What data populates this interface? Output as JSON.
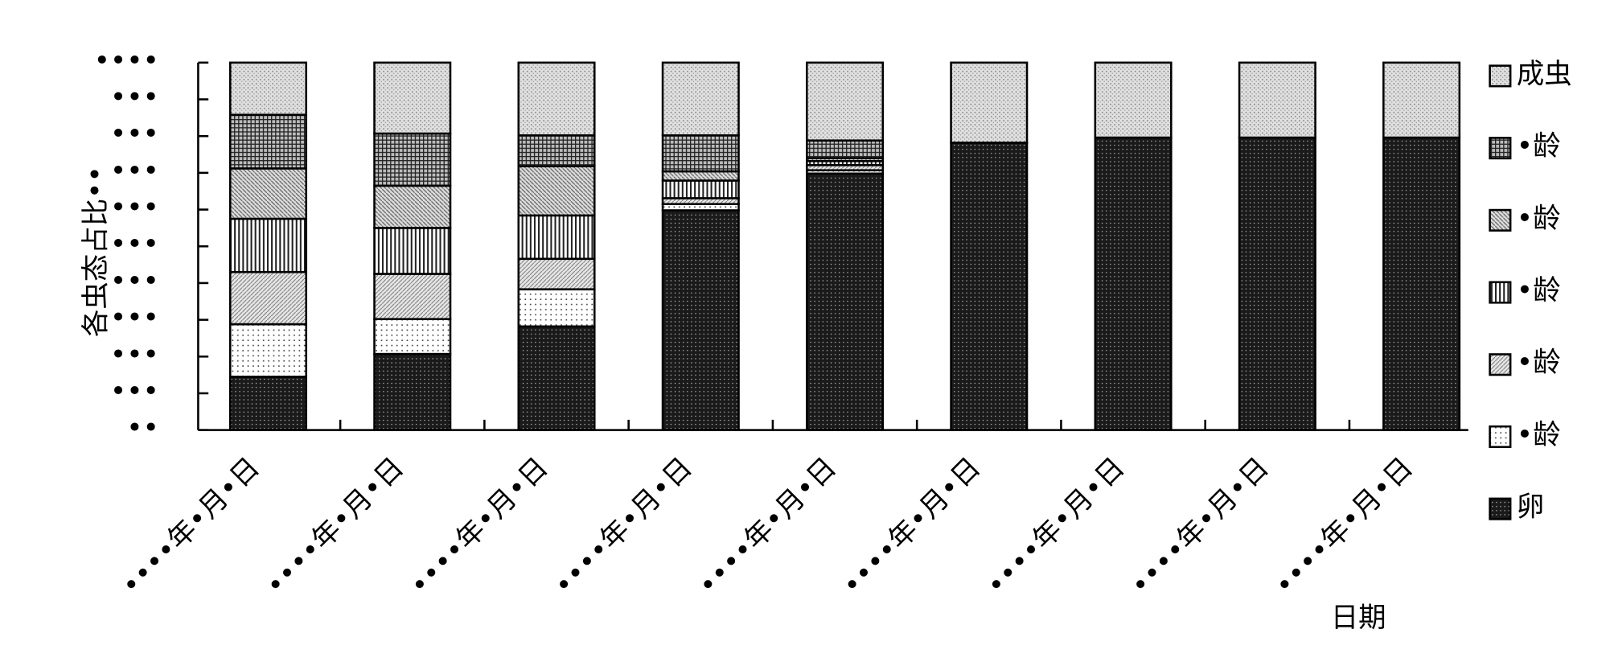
{
  "chart_data": {
    "type": "stacked-bar",
    "y_label": "各虫态占比••",
    "x_label": "日期",
    "categories": [
      "••••年•月•日",
      "••••年•月•日",
      "••••年•月•日",
      "••••年•月•日",
      "••••年•月•日",
      "••••年•月•日",
      "••••年•月•日",
      "••••年•月•日",
      "••••年•月•日"
    ],
    "series": [
      {
        "name": "卵",
        "values": [
          14.5,
          20.7,
          28.2,
          59.8,
          69.8,
          78.2,
          79.6,
          79.6,
          79.6
        ]
      },
      {
        "name": "•龄",
        "values": [
          14.3,
          9.5,
          10.1,
          1.7,
          0.9,
          0,
          0,
          0,
          0
        ]
      },
      {
        "name": "•龄",
        "values": [
          14.2,
          12.3,
          8.3,
          1.6,
          1.4,
          0,
          0,
          0,
          0
        ]
      },
      {
        "name": "•龄",
        "values": [
          14.5,
          12.5,
          11.8,
          4.8,
          1.1,
          0,
          0,
          0,
          0
        ]
      },
      {
        "name": "•龄",
        "values": [
          13.7,
          11.5,
          13.4,
          2.5,
          0.8,
          0,
          0,
          0,
          0
        ]
      },
      {
        "name": "•龄",
        "values": [
          14.6,
          14.2,
          8.4,
          9.8,
          4.8,
          0,
          0,
          0,
          0
        ]
      },
      {
        "name": "成虫",
        "values": [
          14.2,
          19.3,
          19.8,
          19.8,
          21.2,
          21.8,
          20.4,
          20.4,
          20.4
        ]
      }
    ],
    "ylim": [
      0,
      100
    ],
    "yticks": [
      {
        "value": 0,
        "label": "••"
      },
      {
        "value": 10,
        "label": "•••"
      },
      {
        "value": 20,
        "label": "•••"
      },
      {
        "value": 30,
        "label": "•••"
      },
      {
        "value": 40,
        "label": "•••"
      },
      {
        "value": 50,
        "label": "•••"
      },
      {
        "value": 60,
        "label": "•••"
      },
      {
        "value": 70,
        "label": "•••"
      },
      {
        "value": 80,
        "label": "•••"
      },
      {
        "value": 90,
        "label": "•••"
      },
      {
        "value": 100,
        "label": "••••"
      }
    ],
    "legend": "right"
  }
}
